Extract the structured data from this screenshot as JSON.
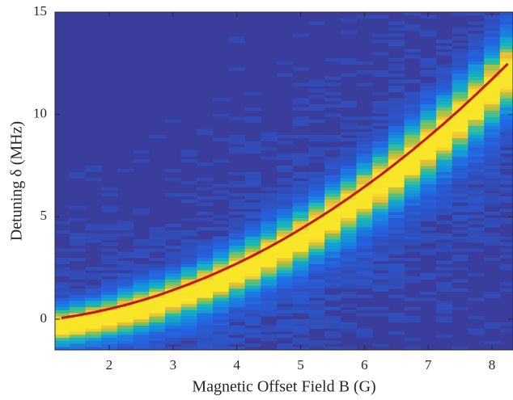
{
  "chart_data": {
    "type": "heatmap-line",
    "xlabel": "Magnetic Offset Field B (G)",
    "ylabel": "Detuning δ (MHz)",
    "xlim": [
      1.15,
      8.33
    ],
    "ylim": [
      -1.5,
      15
    ],
    "xticks": [
      2,
      3,
      4,
      5,
      6,
      7,
      8
    ],
    "yticks": [
      0,
      5,
      10,
      15
    ],
    "series": [
      {
        "color": "#c8151b",
        "x": [
          1.25,
          1.5,
          1.75,
          2,
          2.25,
          2.5,
          2.75,
          3,
          3.25,
          3.5,
          3.75,
          4,
          4.25,
          4.5,
          4.75,
          5,
          5.25,
          5.5,
          5.75,
          6,
          6.25,
          6.5,
          6.75,
          7,
          7.25,
          7.5,
          7.75,
          8,
          8.25
        ],
        "values": [
          0.06,
          0.18,
          0.33,
          0.5,
          0.69,
          0.91,
          1.15,
          1.42,
          1.71,
          2.02,
          2.36,
          2.72,
          3.1,
          3.51,
          3.94,
          4.4,
          4.88,
          5.38,
          5.91,
          6.46,
          7.03,
          7.63,
          8.25,
          8.9,
          9.57,
          10.26,
          10.98,
          11.72,
          12.48
        ]
      }
    ]
  }
}
